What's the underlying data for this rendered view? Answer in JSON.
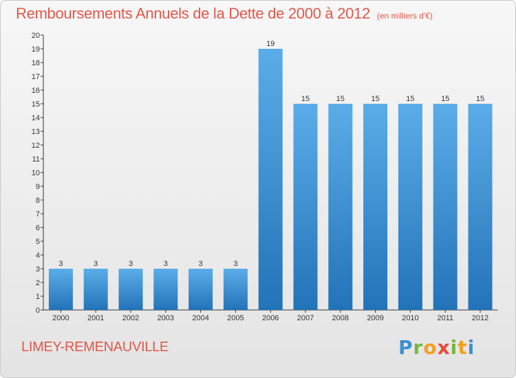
{
  "title": "Remboursements Annuels de la Dette de 2000 à 2012",
  "subtitle": "(en milliers d'€)",
  "commune": "LIMEY-REMENAUVILLE",
  "logo": {
    "p": "P",
    "r": "r",
    "o": "o",
    "x": "x",
    "i1": "i",
    "t": "t",
    "i2": "i"
  },
  "colors": {
    "title": "#e0584a",
    "bar_top": "#5aade8",
    "bar_bottom": "#2273b8",
    "axis": "#333333"
  },
  "chart_data": {
    "type": "bar",
    "title": "Remboursements Annuels de la Dette de 2000 à 2012",
    "subtitle": "(en milliers d'€)",
    "categories": [
      "2000",
      "2001",
      "2002",
      "2003",
      "2004",
      "2005",
      "2006",
      "2007",
      "2008",
      "2009",
      "2010",
      "2011",
      "2012"
    ],
    "values": [
      3,
      3,
      3,
      3,
      3,
      3,
      19,
      15,
      15,
      15,
      15,
      15,
      15
    ],
    "xlabel": "",
    "ylabel": "",
    "ylim": [
      0,
      20
    ],
    "yticks": [
      0,
      1,
      2,
      3,
      4,
      5,
      6,
      7,
      8,
      9,
      10,
      11,
      12,
      13,
      14,
      15,
      16,
      17,
      18,
      19,
      20
    ],
    "grid": false,
    "legend": "none",
    "data_labels": true
  }
}
